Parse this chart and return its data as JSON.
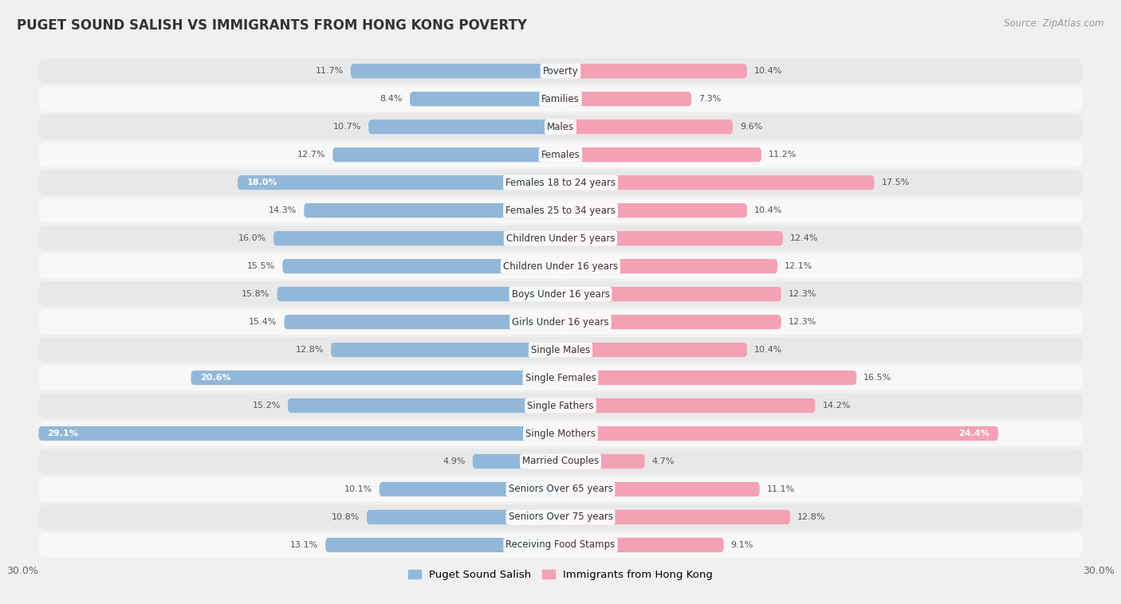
{
  "title": "PUGET SOUND SALISH VS IMMIGRANTS FROM HONG KONG POVERTY",
  "source": "Source: ZipAtlas.com",
  "categories": [
    "Poverty",
    "Families",
    "Males",
    "Females",
    "Females 18 to 24 years",
    "Females 25 to 34 years",
    "Children Under 5 years",
    "Children Under 16 years",
    "Boys Under 16 years",
    "Girls Under 16 years",
    "Single Males",
    "Single Females",
    "Single Fathers",
    "Single Mothers",
    "Married Couples",
    "Seniors Over 65 years",
    "Seniors Over 75 years",
    "Receiving Food Stamps"
  ],
  "left_values": [
    11.7,
    8.4,
    10.7,
    12.7,
    18.0,
    14.3,
    16.0,
    15.5,
    15.8,
    15.4,
    12.8,
    20.6,
    15.2,
    29.1,
    4.9,
    10.1,
    10.8,
    13.1
  ],
  "right_values": [
    10.4,
    7.3,
    9.6,
    11.2,
    17.5,
    10.4,
    12.4,
    12.1,
    12.3,
    12.3,
    10.4,
    16.5,
    14.2,
    24.4,
    4.7,
    11.1,
    12.8,
    9.1
  ],
  "left_color": "#91b8d9",
  "right_color": "#f4a0b5",
  "bar_height": 0.52,
  "xlim": 30.0,
  "background_color": "#f0f0f0",
  "row_odd_color": "#e8e8e8",
  "row_even_color": "#f8f8f8",
  "label_outside_color": "#555555",
  "label_inside_color": "#ffffff",
  "inside_threshold": 18.0,
  "legend_left": "Puget Sound Salish",
  "legend_right": "Immigrants from Hong Kong",
  "title_fontsize": 12,
  "label_fontsize": 8,
  "cat_fontsize": 8.5
}
